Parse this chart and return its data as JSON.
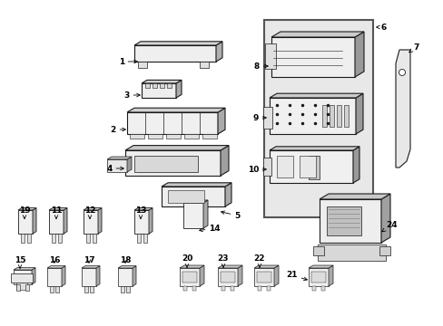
{
  "bg_color": "#ffffff",
  "fig_width": 4.89,
  "fig_height": 3.6,
  "dpi": 100,
  "line_color": "#1a1a1a",
  "text_color": "#000000",
  "label_fontsize": 6.5,
  "arrow_color": "#000000",
  "gray_fill": "#d8d8d8",
  "light_fill": "#f0f0f0",
  "white_fill": "#ffffff"
}
